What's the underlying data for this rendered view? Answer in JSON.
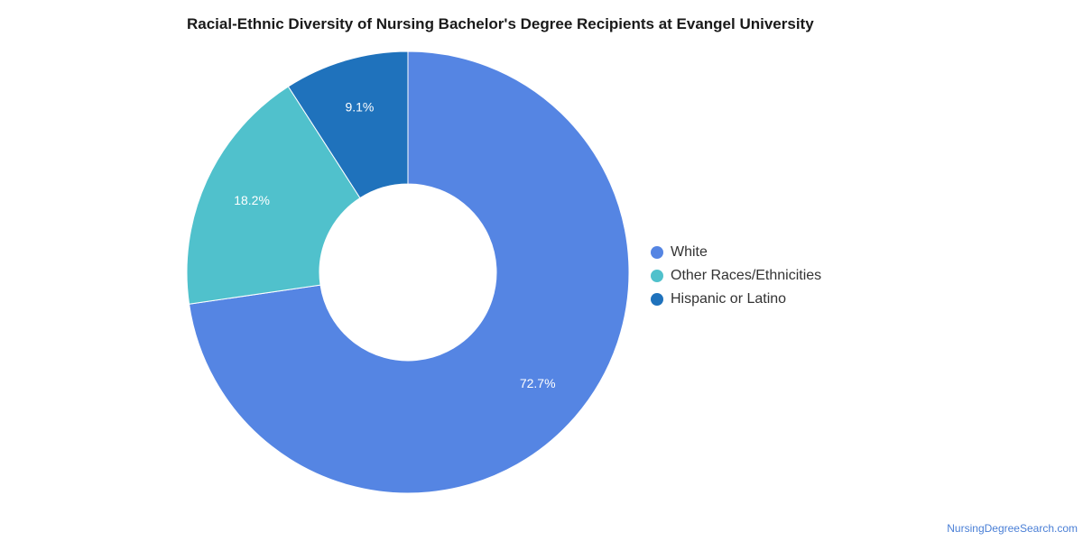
{
  "chart_data": {
    "type": "pie",
    "title": "Racial-Ethnic Diversity of Nursing Bachelor's Degree Recipients at Evangel University",
    "donut": true,
    "slices": [
      {
        "label": "White",
        "value": 72.7,
        "display": "72.7%",
        "color": "#5585e3"
      },
      {
        "label": "Other Races/Ethnicities",
        "value": 18.2,
        "display": "18.2%",
        "color": "#50c1cc"
      },
      {
        "label": "Hispanic or Latino",
        "value": 9.1,
        "display": "9.1%",
        "color": "#1f72bc"
      }
    ],
    "legend_position": "right"
  },
  "footer": {
    "source": "NursingDegreeSearch.com"
  }
}
